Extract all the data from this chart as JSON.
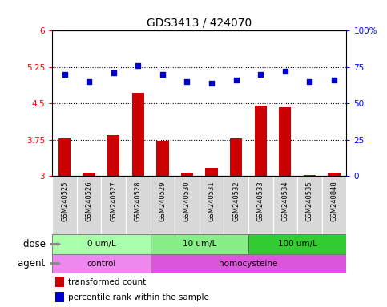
{
  "title": "GDS3413 / 424070",
  "samples": [
    "GSM240525",
    "GSM240526",
    "GSM240527",
    "GSM240528",
    "GSM240529",
    "GSM240530",
    "GSM240531",
    "GSM240532",
    "GSM240533",
    "GSM240534",
    "GSM240535",
    "GSM240848"
  ],
  "transformed_counts": [
    3.78,
    3.08,
    3.85,
    4.72,
    3.74,
    3.08,
    3.17,
    3.78,
    4.45,
    4.42,
    3.03,
    3.08
  ],
  "percentile_ranks": [
    70,
    65,
    71,
    76,
    70,
    65,
    64,
    66,
    70,
    72,
    65,
    66
  ],
  "bar_color": "#cc0000",
  "dot_color": "#0000cc",
  "ylim_left": [
    3.0,
    6.0
  ],
  "ylim_right": [
    0,
    100
  ],
  "yticks_left": [
    3.0,
    3.75,
    4.5,
    5.25,
    6.0
  ],
  "yticks_right": [
    0,
    25,
    50,
    75,
    100
  ],
  "ytick_labels_left": [
    "3",
    "3.75",
    "4.5",
    "5.25",
    "6"
  ],
  "ytick_labels_right": [
    "0",
    "25",
    "50",
    "75",
    "100%"
  ],
  "hlines": [
    3.75,
    4.5,
    5.25
  ],
  "dose_groups": [
    {
      "label": "0 um/L",
      "start": 0,
      "end": 4,
      "color": "#aaffaa"
    },
    {
      "label": "10 um/L",
      "start": 4,
      "end": 8,
      "color": "#88ee88"
    },
    {
      "label": "100 um/L",
      "start": 8,
      "end": 12,
      "color": "#33cc33"
    }
  ],
  "agent_groups": [
    {
      "label": "control",
      "start": 0,
      "end": 4,
      "color": "#ee88ee"
    },
    {
      "label": "homocysteine",
      "start": 4,
      "end": 12,
      "color": "#dd55dd"
    }
  ],
  "dose_label": "dose",
  "agent_label": "agent",
  "legend_bar_label": "transformed count",
  "legend_dot_label": "percentile rank within the sample",
  "title_fontsize": 10,
  "tick_fontsize": 7.5,
  "sample_fontsize": 6.0,
  "row_fontsize": 7.5,
  "legend_fontsize": 7.5,
  "label_fontsize": 8.5,
  "sample_bg_color": "#d8d8d8",
  "plot_bg_color": "#ffffff"
}
